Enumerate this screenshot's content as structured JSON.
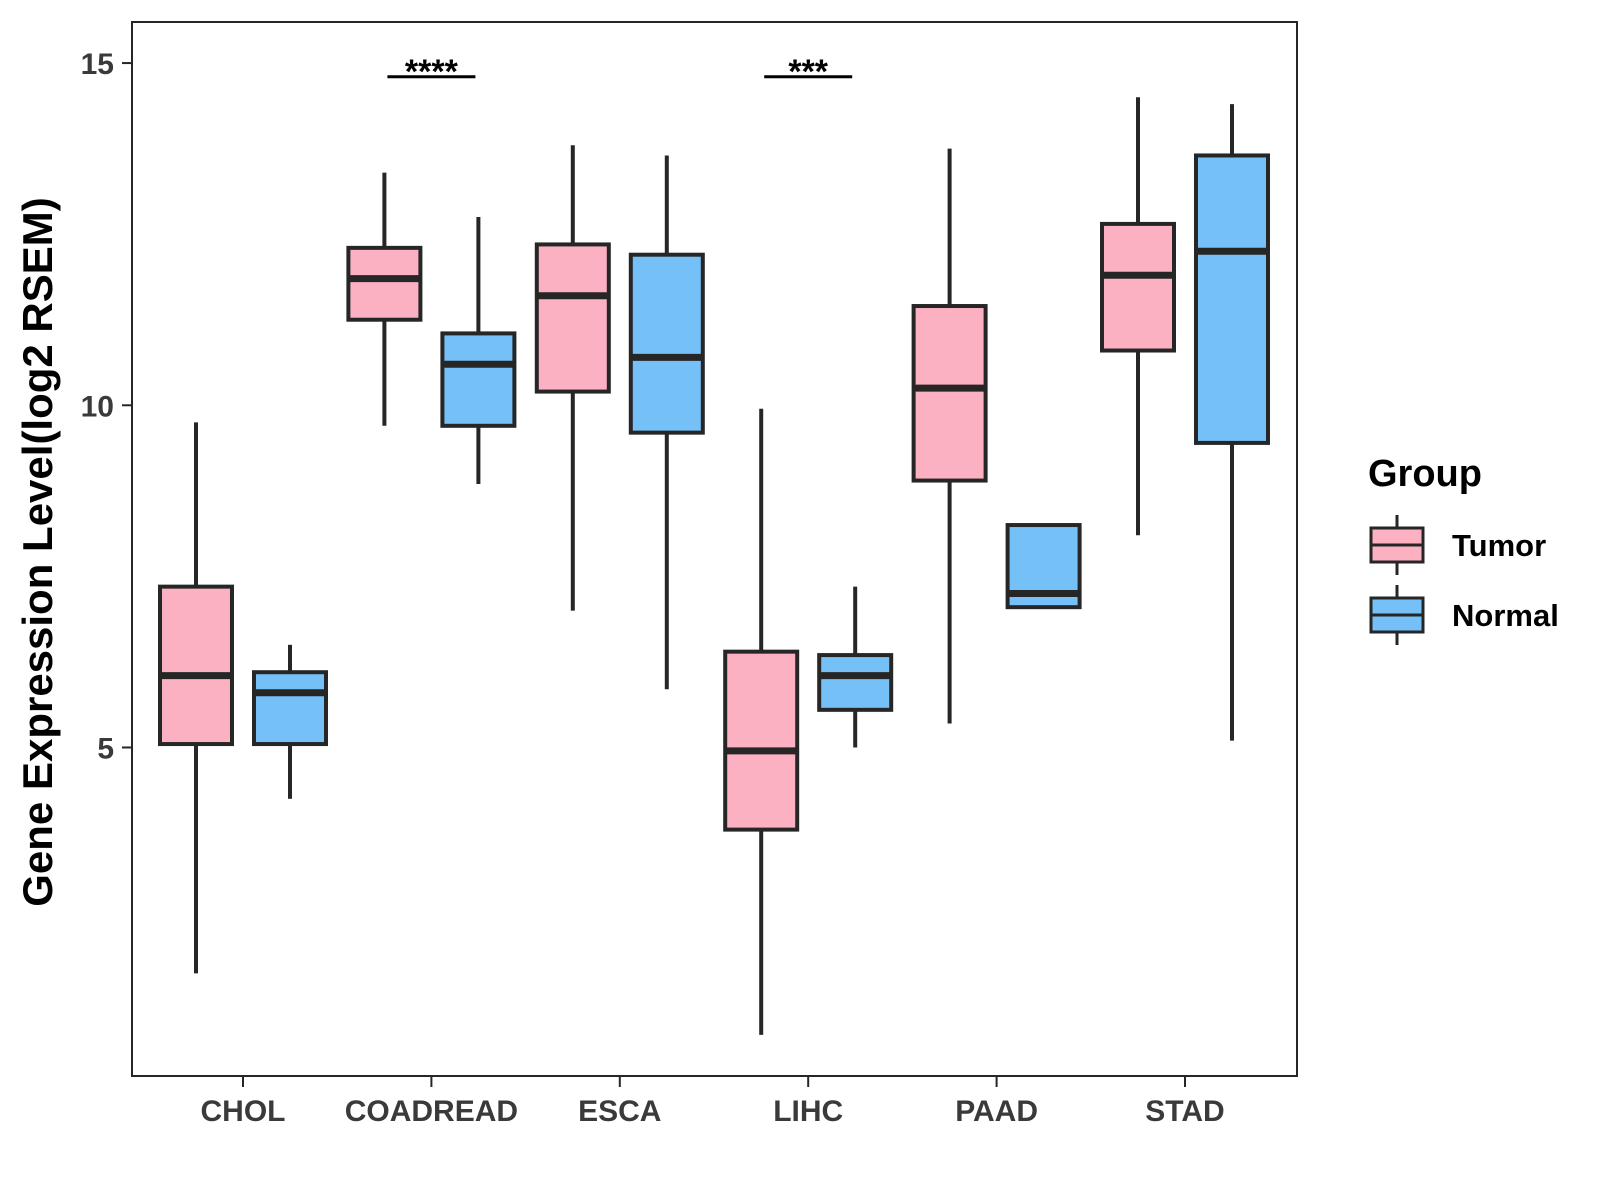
{
  "chart_data": {
    "type": "boxplot",
    "title": "",
    "xlabel": "",
    "ylabel": "Gene Expression Level(log2 RSEM)",
    "ylim": [
      0.2,
      15.6
    ],
    "yticks": [
      5,
      10,
      15
    ],
    "grid": false,
    "categories": [
      "CHOL",
      "COADREAD",
      "ESCA",
      "LIHC",
      "PAAD",
      "STAD"
    ],
    "legend": {
      "title": "Group",
      "position": "right",
      "entries": [
        "Tumor",
        "Normal"
      ]
    },
    "colors": {
      "Tumor": "#fbb1c2",
      "Normal": "#75c0f6",
      "outline": "#262626"
    },
    "series": [
      {
        "name": "Tumor",
        "boxes": [
          {
            "category": "CHOL",
            "min": 1.7,
            "q1": 5.05,
            "median": 6.05,
            "q3": 7.35,
            "max": 9.75
          },
          {
            "category": "COADREAD",
            "min": 9.7,
            "q1": 11.25,
            "median": 11.85,
            "q3": 12.3,
            "max": 13.4
          },
          {
            "category": "ESCA",
            "min": 7.0,
            "q1": 10.2,
            "median": 11.6,
            "q3": 12.35,
            "max": 13.8
          },
          {
            "category": "LIHC",
            "min": 0.8,
            "q1": 3.8,
            "median": 4.95,
            "q3": 6.4,
            "max": 9.95
          },
          {
            "category": "PAAD",
            "min": 5.35,
            "q1": 8.9,
            "median": 10.25,
            "q3": 11.45,
            "max": 13.75
          },
          {
            "category": "STAD",
            "min": 8.1,
            "q1": 10.8,
            "median": 11.9,
            "q3": 12.65,
            "max": 14.5
          }
        ]
      },
      {
        "name": "Normal",
        "boxes": [
          {
            "category": "CHOL",
            "min": 4.25,
            "q1": 5.05,
            "median": 5.8,
            "q3": 6.1,
            "max": 6.5
          },
          {
            "category": "COADREAD",
            "min": 8.85,
            "q1": 9.7,
            "median": 10.6,
            "q3": 11.05,
            "max": 12.75
          },
          {
            "category": "ESCA",
            "min": 5.85,
            "q1": 9.6,
            "median": 10.7,
            "q3": 12.2,
            "max": 13.65
          },
          {
            "category": "LIHC",
            "min": 5.0,
            "q1": 5.55,
            "median": 6.05,
            "q3": 6.35,
            "max": 7.35
          },
          {
            "category": "PAAD",
            "min": 7.05,
            "q1": 7.05,
            "median": 7.25,
            "q3": 8.25,
            "max": 8.25
          },
          {
            "category": "STAD",
            "min": 5.1,
            "q1": 9.45,
            "median": 12.25,
            "q3": 13.65,
            "max": 14.4
          }
        ]
      }
    ],
    "annotations": [
      {
        "category": "COADREAD",
        "label": "****",
        "y": 14.8
      },
      {
        "category": "LIHC",
        "label": "***",
        "y": 14.8
      }
    ]
  }
}
